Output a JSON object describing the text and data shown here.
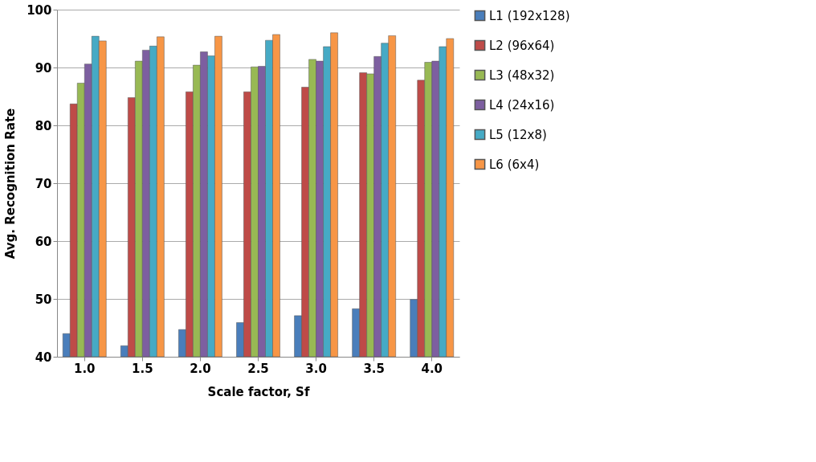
{
  "chart_data": {
    "type": "bar",
    "xlabel": "Scale factor, Sf",
    "ylabel": "Avg. Recognition Rate",
    "categories": [
      "1.0",
      "1.5",
      "2.0",
      "2.5",
      "3.0",
      "3.5",
      "4.0"
    ],
    "series": [
      {
        "name": "L1  (192x128)",
        "color": "#4a7ebb",
        "values": [
          44.0,
          41.9,
          44.7,
          45.9,
          47.1,
          48.3,
          49.9
        ]
      },
      {
        "name": "L2  (96x64)",
        "color": "#be4b48",
        "values": [
          83.7,
          84.8,
          85.8,
          85.8,
          86.6,
          89.1,
          87.8
        ]
      },
      {
        "name": "L3  (48x32)",
        "color": "#98b954",
        "values": [
          87.3,
          91.1,
          90.4,
          90.1,
          91.4,
          88.9,
          90.9
        ]
      },
      {
        "name": "L4  (24x16)",
        "color": "#7d5fa0",
        "values": [
          90.6,
          93.0,
          92.7,
          90.2,
          91.1,
          91.9,
          91.1
        ]
      },
      {
        "name": "L5  (12x8)",
        "color": "#46aac5",
        "values": [
          95.4,
          93.7,
          92.0,
          94.7,
          93.6,
          94.2,
          93.6
        ]
      },
      {
        "name": "L6  (6x4)",
        "color": "#f79646",
        "values": [
          94.6,
          95.3,
          95.4,
          95.7,
          96.0,
          95.5,
          95.0
        ]
      }
    ],
    "ylim": [
      40,
      100
    ],
    "yticks": [
      40,
      50,
      60,
      70,
      80,
      90,
      100
    ],
    "grid": "y",
    "legend": "right"
  }
}
